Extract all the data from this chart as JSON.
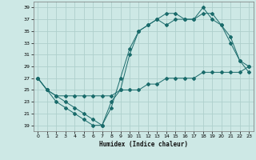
{
  "xlabel": "Humidex (Indice chaleur)",
  "bg_color": "#cde8e5",
  "grid_color": "#aed0cc",
  "line_color": "#1a6b6b",
  "xlim": [
    -0.5,
    23.5
  ],
  "ylim": [
    18,
    40
  ],
  "yticks": [
    19,
    21,
    23,
    25,
    27,
    29,
    31,
    33,
    35,
    37,
    39
  ],
  "xticks": [
    0,
    1,
    2,
    3,
    4,
    5,
    6,
    7,
    8,
    9,
    10,
    11,
    12,
    13,
    14,
    15,
    16,
    17,
    18,
    19,
    20,
    21,
    22,
    23
  ],
  "line1_x": [
    0,
    1,
    2,
    3,
    4,
    5,
    6,
    7,
    8,
    9,
    10,
    11,
    12,
    13,
    14,
    15,
    16,
    17,
    18,
    19,
    20,
    21,
    22,
    23
  ],
  "line1_y": [
    27,
    25,
    23,
    22,
    21,
    20,
    19,
    19,
    22,
    27,
    32,
    35,
    36,
    37,
    38,
    38,
    37,
    37,
    39,
    37,
    36,
    33,
    30,
    28
  ],
  "line2_x": [
    0,
    1,
    2,
    3,
    4,
    5,
    6,
    7,
    8,
    9,
    10,
    11,
    12,
    13,
    14,
    15,
    16,
    17,
    18,
    19,
    20,
    21,
    22,
    23
  ],
  "line2_y": [
    27,
    25,
    24,
    23,
    22,
    21,
    20,
    19,
    23,
    25,
    31,
    35,
    36,
    37,
    36,
    37,
    37,
    37,
    38,
    38,
    36,
    34,
    30,
    29
  ],
  "line3_x": [
    0,
    1,
    2,
    3,
    4,
    5,
    6,
    7,
    8,
    9,
    10,
    11,
    12,
    13,
    14,
    15,
    16,
    17,
    18,
    19,
    20,
    21,
    22,
    23
  ],
  "line3_y": [
    27,
    25,
    24,
    24,
    24,
    24,
    24,
    24,
    24,
    25,
    25,
    25,
    26,
    26,
    27,
    27,
    27,
    27,
    28,
    28,
    28,
    28,
    28,
    29
  ]
}
